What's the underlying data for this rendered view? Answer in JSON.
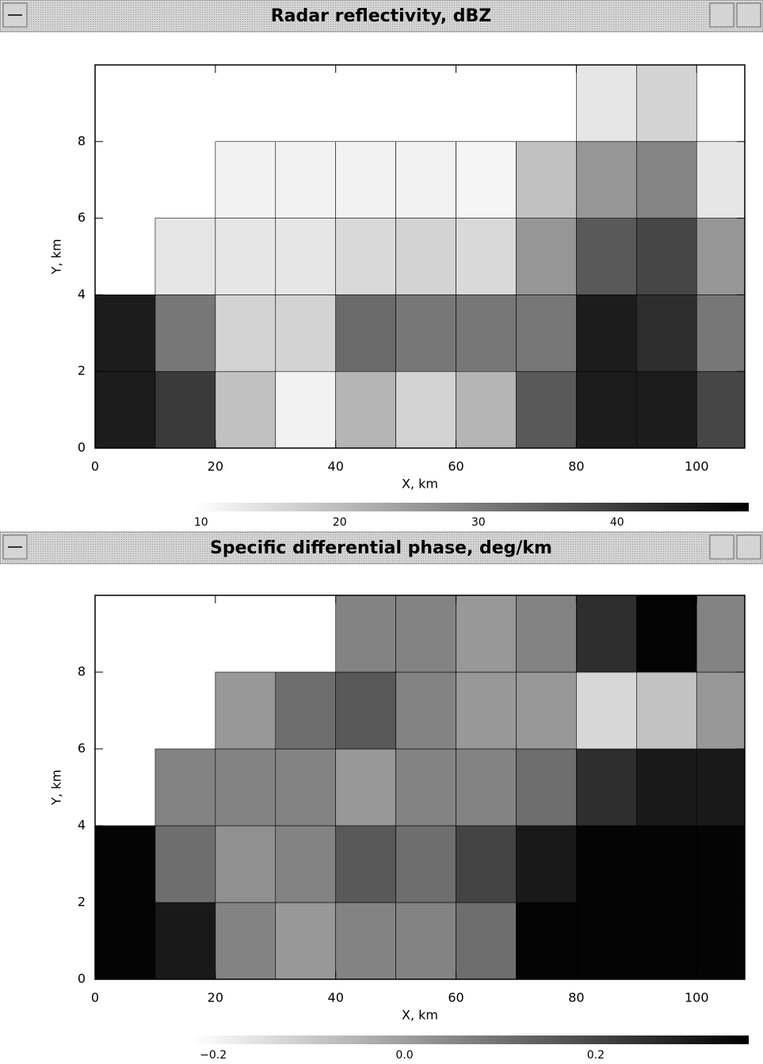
{
  "chart_data": [
    {
      "type": "heatmap",
      "title": "Radar reflectivity, dBZ",
      "xlabel": "X,  km",
      "ylabel": "Y, km",
      "cmap": "gray_r",
      "x": [
        5,
        15,
        25,
        35,
        45,
        55,
        65,
        75,
        85,
        95,
        105
      ],
      "y": [
        1,
        3,
        5,
        7,
        9
      ],
      "z": [
        [
          45,
          40,
          18,
          10,
          20,
          15,
          20,
          35,
          45,
          45,
          38
        ],
        [
          45,
          30,
          15,
          15,
          32,
          30,
          30,
          30,
          45,
          42,
          30
        ],
        [
          null,
          12,
          12,
          12,
          14,
          15,
          14,
          25,
          35,
          38,
          25
        ],
        [
          null,
          null,
          10,
          10,
          10,
          10,
          8,
          18,
          25,
          28,
          12
        ],
        [
          null,
          null,
          null,
          null,
          null,
          null,
          null,
          null,
          12,
          15,
          null
        ]
      ],
      "xlim": [
        0,
        108
      ],
      "ylim": [
        0,
        10
      ],
      "xticks": [
        0,
        20,
        40,
        60,
        80,
        100
      ],
      "yticks": [
        0,
        2,
        4,
        6,
        8
      ],
      "clim": [
        9.5,
        49.5
      ],
      "cticks": [
        10,
        20,
        30,
        40
      ]
    },
    {
      "type": "heatmap",
      "title": "Specific differential phase, deg/km",
      "xlabel": "X,  km",
      "ylabel": "Y, km",
      "cmap": "gray_r",
      "x": [
        5,
        15,
        25,
        35,
        45,
        55,
        65,
        75,
        85,
        95,
        105
      ],
      "y": [
        1,
        3,
        5,
        7,
        9
      ],
      "z": [
        [
          0.35,
          0.3,
          0.05,
          0.0,
          0.05,
          0.05,
          0.1,
          0.35,
          0.35,
          0.35,
          0.35
        ],
        [
          0.35,
          0.1,
          0.02,
          0.05,
          0.15,
          0.1,
          0.2,
          0.3,
          0.35,
          0.35,
          0.35
        ],
        [
          null,
          0.05,
          0.05,
          0.05,
          0.0,
          0.05,
          0.05,
          0.1,
          0.25,
          0.3,
          0.3
        ],
        [
          null,
          null,
          0.0,
          0.1,
          0.15,
          0.05,
          0.0,
          0.0,
          -0.15,
          -0.1,
          0.0
        ],
        [
          null,
          null,
          null,
          null,
          0.05,
          0.05,
          0.0,
          0.05,
          0.25,
          0.35,
          0.05
        ]
      ],
      "xlim": [
        0,
        108
      ],
      "ylim": [
        0,
        10
      ],
      "xticks": [
        0,
        20,
        40,
        60,
        80,
        100
      ],
      "yticks": [
        0,
        2,
        4,
        6,
        8
      ],
      "clim": [
        -0.22,
        0.36
      ],
      "cticks": [
        {
          "value": -0.2,
          "label": "−0.2"
        },
        {
          "value": 0,
          "label": "0.0"
        },
        0.2
      ]
    }
  ]
}
